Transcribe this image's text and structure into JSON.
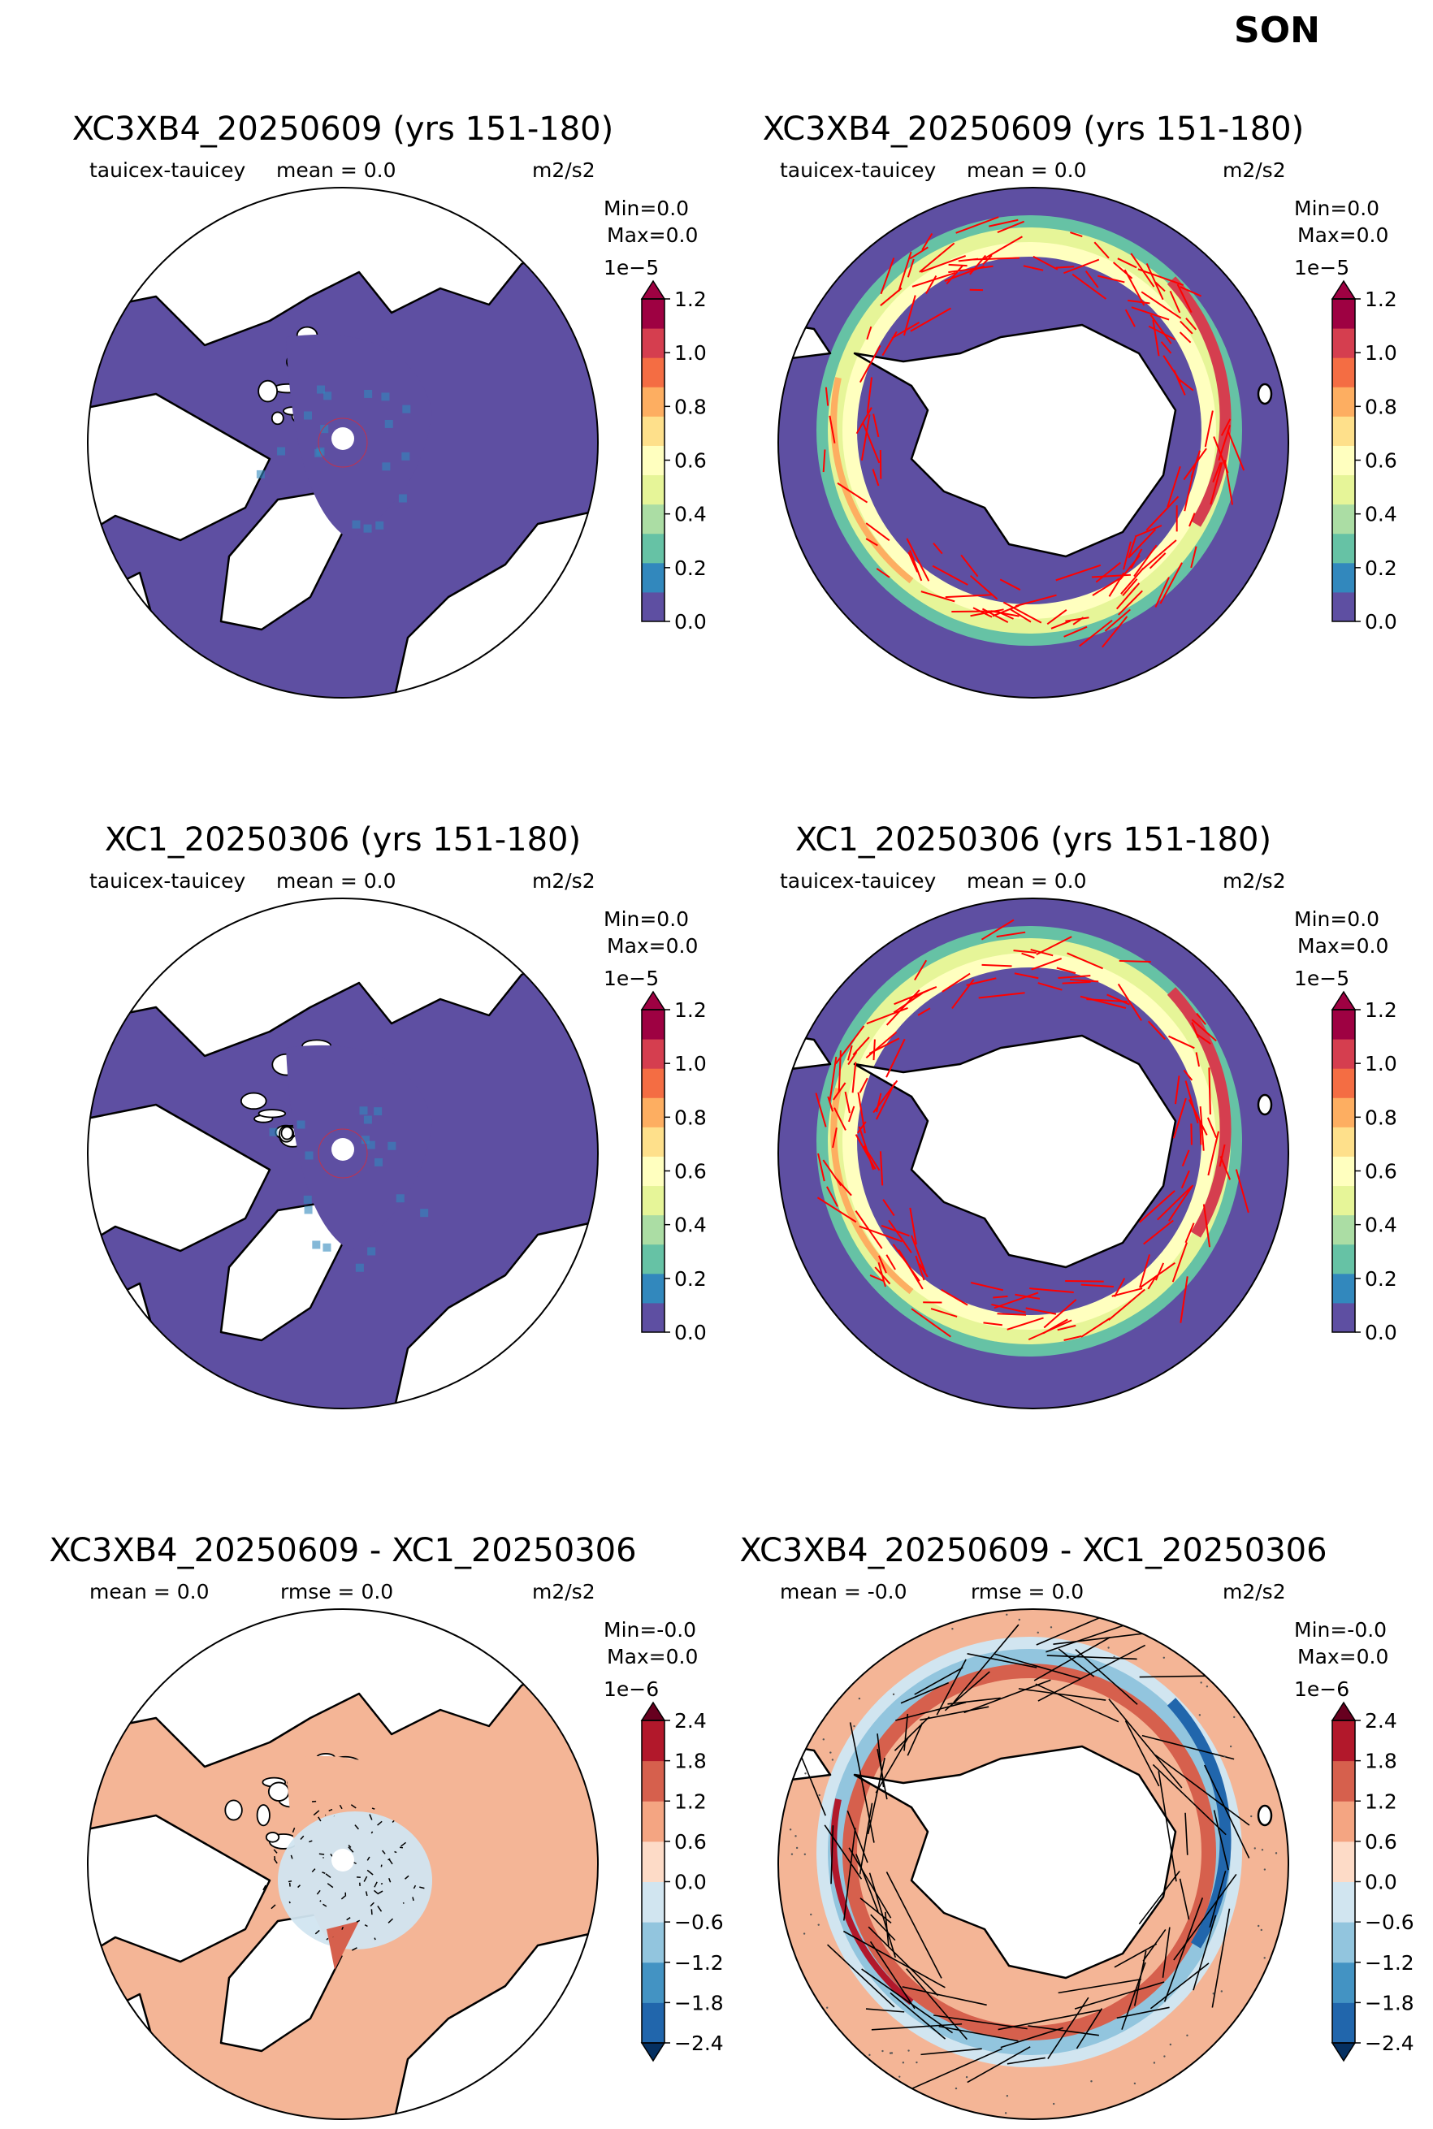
{
  "season": "SON",
  "panel_titles": {
    "r0": "XC3XB4_20250609 (yrs 151-180)",
    "r1": "XC1_20250306 (yrs 151-180)",
    "r2": "XC3XB4_20250609 - XC1_20250306"
  },
  "chart_data": [
    {
      "type": "heatmap",
      "title": "XC3XB4_20250609 (yrs 151-180)",
      "hemisphere": "north",
      "variable": "tauicex-tauicey",
      "stat_text": "mean = 0.0",
      "rmse_text": "",
      "units": "m2/s2",
      "min_text": "Min=0.0",
      "max_text": "Max=0.0",
      "scale_text": "1e−5",
      "colorbar": {
        "ticks": [
          "0.0",
          "0.2",
          "0.4",
          "0.6",
          "0.8",
          "1.0",
          "1.2"
        ],
        "colors": [
          "#5e4fa2",
          "#3288bd",
          "#66c2a5",
          "#abdda4",
          "#e6f598",
          "#ffffbf",
          "#fee08b",
          "#fdae61",
          "#f46d43",
          "#d53e4f",
          "#9e0142"
        ],
        "extend_color": "#9e0142"
      }
    },
    {
      "type": "heatmap",
      "title": "XC3XB4_20250609 (yrs 151-180)",
      "hemisphere": "south",
      "variable": "tauicex-tauicey",
      "stat_text": "mean = 0.0",
      "rmse_text": "",
      "units": "m2/s2",
      "min_text": "Min=0.0",
      "max_text": "Max=0.0",
      "scale_text": "1e−5",
      "colorbar": {
        "ticks": [
          "0.0",
          "0.2",
          "0.4",
          "0.6",
          "0.8",
          "1.0",
          "1.2"
        ],
        "colors": [
          "#5e4fa2",
          "#3288bd",
          "#66c2a5",
          "#abdda4",
          "#e6f598",
          "#ffffbf",
          "#fee08b",
          "#fdae61",
          "#f46d43",
          "#d53e4f",
          "#9e0142"
        ],
        "extend_color": "#9e0142"
      }
    },
    {
      "type": "heatmap",
      "title": "XC1_20250306 (yrs 151-180)",
      "hemisphere": "north",
      "variable": "tauicex-tauicey",
      "stat_text": "mean = 0.0",
      "rmse_text": "",
      "units": "m2/s2",
      "min_text": "Min=0.0",
      "max_text": "Max=0.0",
      "scale_text": "1e−5",
      "colorbar": {
        "ticks": [
          "0.0",
          "0.2",
          "0.4",
          "0.6",
          "0.8",
          "1.0",
          "1.2"
        ],
        "colors": [
          "#5e4fa2",
          "#3288bd",
          "#66c2a5",
          "#abdda4",
          "#e6f598",
          "#ffffbf",
          "#fee08b",
          "#fdae61",
          "#f46d43",
          "#d53e4f",
          "#9e0142"
        ],
        "extend_color": "#9e0142"
      }
    },
    {
      "type": "heatmap",
      "title": "XC1_20250306 (yrs 151-180)",
      "hemisphere": "south",
      "variable": "tauicex-tauicey",
      "stat_text": "mean = 0.0",
      "rmse_text": "",
      "units": "m2/s2",
      "min_text": "Min=0.0",
      "max_text": "Max=0.0",
      "scale_text": "1e−5",
      "colorbar": {
        "ticks": [
          "0.0",
          "0.2",
          "0.4",
          "0.6",
          "0.8",
          "1.0",
          "1.2"
        ],
        "colors": [
          "#5e4fa2",
          "#3288bd",
          "#66c2a5",
          "#abdda4",
          "#e6f598",
          "#ffffbf",
          "#fee08b",
          "#fdae61",
          "#f46d43",
          "#d53e4f",
          "#9e0142"
        ],
        "extend_color": "#9e0142"
      }
    },
    {
      "type": "heatmap",
      "title": "XC3XB4_20250609 - XC1_20250306",
      "hemisphere": "north",
      "variable": "",
      "stat_text": "mean = 0.0",
      "rmse_text": "rmse = 0.0",
      "units": "m2/s2",
      "min_text": "Min=-0.0",
      "max_text": "Max=0.0",
      "scale_text": "1e−6",
      "colorbar": {
        "ticks": [
          "−2.4",
          "−1.8",
          "−1.2",
          "−0.6",
          "0.0",
          "0.6",
          "1.2",
          "1.8",
          "2.4"
        ],
        "colors": [
          "#2166ac",
          "#4393c3",
          "#92c5de",
          "#d1e5f0",
          "#fddbc7",
          "#f4a582",
          "#d6604d",
          "#b2182b"
        ],
        "extend_low": "#053061",
        "extend_high": "#67001f"
      }
    },
    {
      "type": "heatmap",
      "title": "XC3XB4_20250609 - XC1_20250306",
      "hemisphere": "south",
      "variable": "",
      "stat_text": "mean = -0.0",
      "rmse_text": "rmse = 0.0",
      "units": "m2/s2",
      "min_text": "Min=-0.0",
      "max_text": "Max=0.0",
      "scale_text": "1e−6",
      "colorbar": {
        "ticks": [
          "−2.4",
          "−1.8",
          "−1.2",
          "−0.6",
          "0.0",
          "0.6",
          "1.2",
          "1.8",
          "2.4"
        ],
        "colors": [
          "#2166ac",
          "#4393c3",
          "#92c5de",
          "#d1e5f0",
          "#fddbc7",
          "#f4a582",
          "#d6604d",
          "#b2182b"
        ],
        "extend_low": "#053061",
        "extend_high": "#67001f"
      }
    }
  ],
  "colors": {
    "ocean_seq": "#5e4fa2",
    "ocean_diff": "#f4b596",
    "land": "#ffffff",
    "vector_seq": "#ff0000",
    "vector_diff": "#000000"
  }
}
